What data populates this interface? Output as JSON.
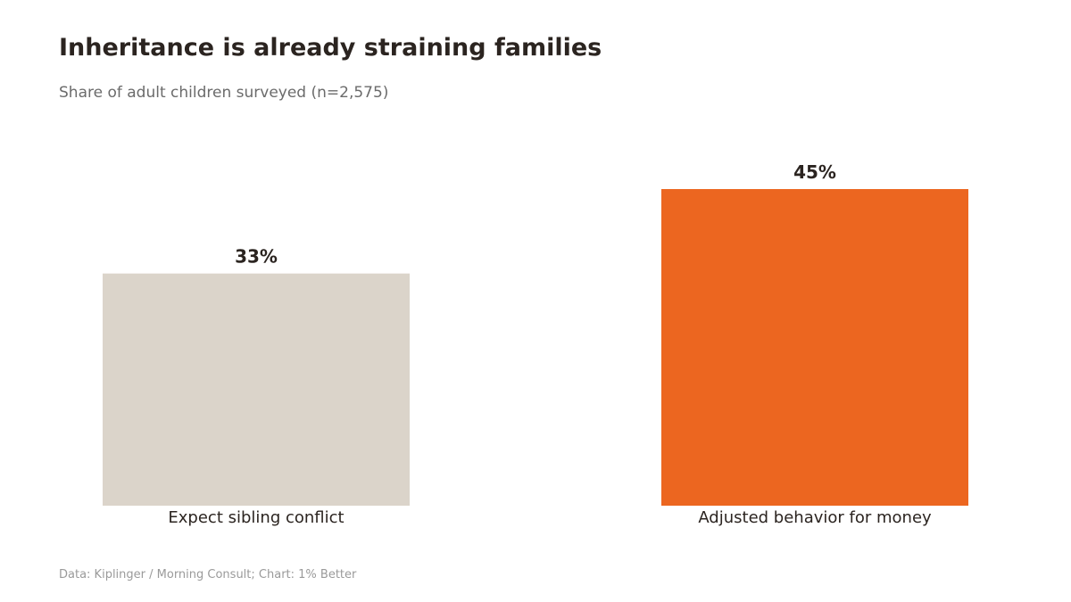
{
  "chart": {
    "title": "Inheritance is already straining families",
    "subtitle": "Share of adult children surveyed (n=2,575)",
    "source": "Data: Kiplinger / Morning Consult; Chart: 1% Better"
  },
  "colors": {
    "muted_bar": "#dbd4ca",
    "accent_bar": "#ec6620",
    "text": "#2b2420"
  },
  "chart_data": {
    "type": "bar",
    "title": "Inheritance is already straining families",
    "subtitle": "Share of adult children surveyed (n=2,575)",
    "categories": [
      "Expect sibling conflict",
      "Adjusted behavior for money"
    ],
    "values": [
      33,
      45
    ],
    "value_labels": [
      "33%",
      "45%"
    ],
    "bar_colors": [
      "#dbd4ca",
      "#ec6620"
    ],
    "unit": "%",
    "ylim": [
      0,
      45
    ],
    "grid": false,
    "legend": "none",
    "xlabel": "",
    "ylabel": ""
  }
}
